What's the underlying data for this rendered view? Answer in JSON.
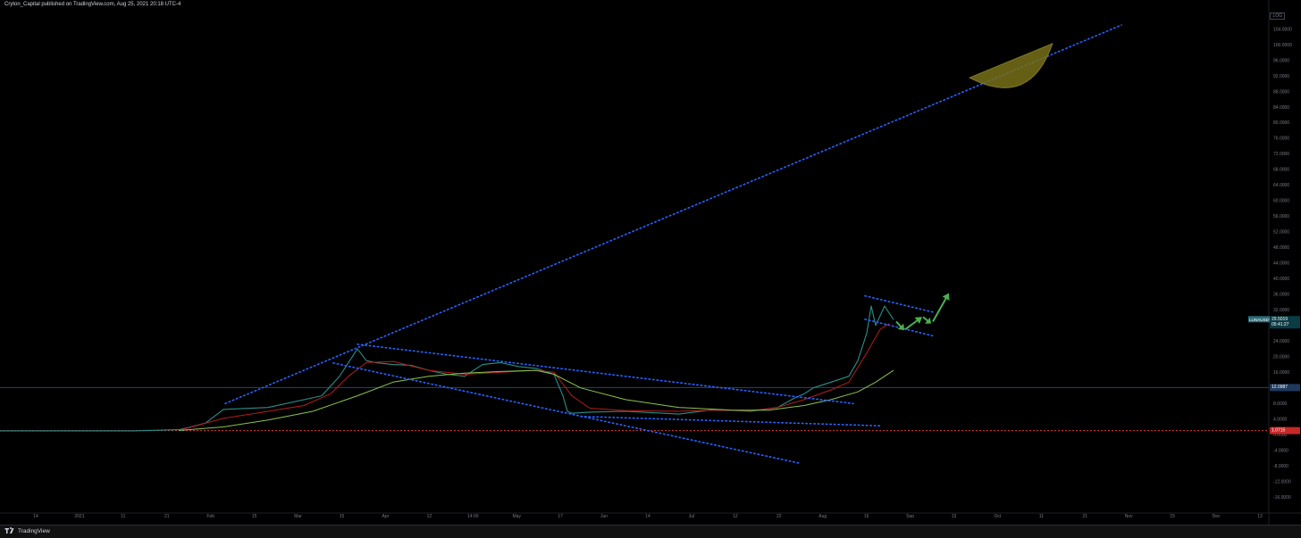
{
  "header": {
    "text": "Cryton_Capital published on TradingView.com, Aug 25, 2021 20:18 UTC-4"
  },
  "footer": {
    "brand": "TradingView"
  },
  "corner": {
    "label": "LOG"
  },
  "colors": {
    "background": "#000000",
    "candles": "#2a8f8a",
    "ma_fast": "#b71c1c",
    "ma_slow": "#8bc34a",
    "trendline": "#2962ff",
    "support": "#e53935",
    "horizontal": "#26456b",
    "arc_fill": "#77701a",
    "arrow": "#4caf50",
    "price_tag": "#2a6b78"
  },
  "chart_data": {
    "type": "line",
    "symbol": "LUNAUSDT",
    "y_axis": {
      "ticks": [
        "104.0000",
        "100.0000",
        "96.0000",
        "92.0000",
        "88.0000",
        "84.0000",
        "80.0000",
        "76.0000",
        "72.0000",
        "68.0000",
        "64.0000",
        "60.0000",
        "56.0000",
        "52.0000",
        "48.0000",
        "44.0000",
        "40.0000",
        "36.0000",
        "32.0000",
        "28.0000",
        "24.0000",
        "20.0000",
        "16.0000",
        "12.0000",
        "8.0000",
        "4.0000",
        "0.0000",
        "-4.0000",
        "-8.0000",
        "-12.0000",
        "-16.0000"
      ],
      "ylim": [
        -18,
        108
      ]
    },
    "x_axis": {
      "ticks": [
        "14",
        "2021",
        "11",
        "21",
        "Feb",
        "15",
        "Mar",
        "15",
        "Apr",
        "12",
        "14:00",
        "May",
        "17",
        "Jun",
        "14",
        "Jul",
        "12",
        "22",
        "Aug",
        "16",
        "Sep",
        "13",
        "Oct",
        "11",
        "21",
        "Nov",
        "15",
        "Dec",
        "13"
      ]
    },
    "price_labels": {
      "current": {
        "symbol": "LUNAUSDT",
        "price": "29.5019",
        "countdown": "05:41:27",
        "value": 29.5019
      },
      "level_high": {
        "price": "12.0987",
        "value": 12.0987
      },
      "level_low": {
        "price": "1.0715",
        "value": 1.0715
      }
    },
    "series": [
      {
        "name": "price",
        "x": [
          0,
          50,
          100,
          150,
          200,
          210,
          230,
          250,
          300,
          360,
          380,
          400,
          410,
          420,
          440,
          460,
          480,
          500,
          520,
          540,
          560,
          580,
          600,
          620,
          630,
          635,
          640,
          660,
          700,
          760,
          800,
          840,
          870,
          890,
          900,
          910,
          930,
          950,
          960,
          970,
          975,
          980,
          990,
          1000
        ],
        "values": [
          1.0,
          1.0,
          1.0,
          1.0,
          1.3,
          1.8,
          3.0,
          6.5,
          7.0,
          10.0,
          15.0,
          22.0,
          19.0,
          18.5,
          18.0,
          17.8,
          16.5,
          15.5,
          15.0,
          18.0,
          18.5,
          17.5,
          17.0,
          15.5,
          10.0,
          6.0,
          5.5,
          5.8,
          6.0,
          5.3,
          6.5,
          6.0,
          7.0,
          9.5,
          10.5,
          12.0,
          13.5,
          15.0,
          19.0,
          26.0,
          33.0,
          28.0,
          33.0,
          29.5
        ]
      },
      {
        "name": "MA fast",
        "x": [
          200,
          250,
          300,
          340,
          370,
          390,
          410,
          440,
          480,
          520,
          560,
          600,
          620,
          640,
          660,
          700,
          760,
          800,
          840,
          870,
          900,
          930,
          950,
          970,
          985,
          995
        ],
        "values": [
          1.1,
          4.2,
          6.0,
          7.5,
          10.5,
          15.0,
          18.5,
          18.8,
          16.5,
          15.5,
          16.0,
          16.5,
          16.0,
          10.0,
          6.8,
          6.2,
          6.0,
          6.3,
          6.2,
          7.0,
          9.0,
          11.5,
          13.5,
          21.0,
          27.0,
          28.5
        ]
      },
      {
        "name": "MA slow",
        "x": [
          200,
          250,
          300,
          350,
          400,
          440,
          480,
          520,
          560,
          600,
          620,
          650,
          700,
          760,
          820,
          860,
          900,
          930,
          960,
          980,
          1000
        ],
        "values": [
          1.1,
          2.0,
          3.8,
          6.0,
          10.0,
          13.5,
          15.0,
          15.8,
          16.2,
          16.5,
          15.5,
          12.0,
          9.0,
          7.0,
          6.3,
          6.3,
          7.5,
          9.0,
          11.0,
          13.5,
          16.5
        ]
      }
    ],
    "annotations": {
      "long_trendline": [
        [
          252,
          8.0
        ],
        [
          1255,
          105.0
        ]
      ],
      "channel_upper": [
        [
          400,
          23.2
        ],
        [
          955,
          8.0
        ]
      ],
      "channel_lower": [
        [
          373,
          18.4
        ],
        [
          895,
          -7.3
        ]
      ],
      "base_line": [
        [
          650,
          4.7
        ],
        [
          985,
          2.3
        ]
      ],
      "flag_upper": [
        [
          968,
          35.6
        ],
        [
          1045,
          31.4
        ]
      ],
      "flag_lower": [
        [
          968,
          29.6
        ],
        [
          1045,
          25.3
        ]
      ],
      "arc": {
        "from": [
          1085,
          91.5
        ],
        "to": [
          1178,
          100.3
        ]
      },
      "arrows": [
        {
          "from": [
            1003,
            29.0
          ],
          "to": [
            1012,
            26.8
          ]
        },
        {
          "from": [
            1013,
            27.0
          ],
          "to": [
            1032,
            30.2
          ]
        },
        {
          "from": [
            1033,
            30.2
          ],
          "to": [
            1042,
            28.5
          ]
        },
        {
          "from": [
            1044,
            29.0
          ],
          "to": [
            1062,
            36.3
          ]
        }
      ]
    }
  }
}
